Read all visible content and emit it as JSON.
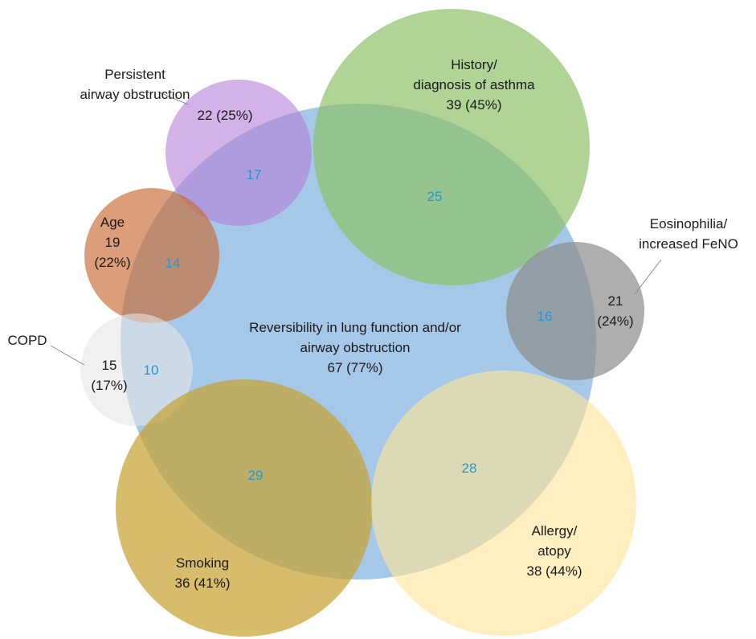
{
  "center": {
    "line1": "Reversibility in lung function and/or",
    "line2": "airway obstruction",
    "line3": "67 (77%)",
    "color": "#5b9bd5"
  },
  "circles": {
    "persistent": {
      "line1": "Persistent",
      "line2": "airway obstruction",
      "value": "22 (25%)",
      "overlap": "17",
      "color": "#b57fd9"
    },
    "history": {
      "line1": "History/",
      "line2": "diagnosis of asthma",
      "value": "39 (45%)",
      "overlap": "25",
      "color": "#8fc06a"
    },
    "age": {
      "line1": "Age",
      "line2": "19",
      "line3": "(22%)",
      "overlap": "14",
      "color": "#c96a33"
    },
    "eosinophilia": {
      "line1": "Eosinophilia/",
      "line2": "increased FeNO",
      "value1": "21",
      "value2": "(24%)",
      "overlap": "16",
      "color": "#8c8c8c"
    },
    "copd": {
      "line1": "COPD",
      "value1": "15",
      "value2": "(17%)",
      "overlap": "10",
      "color": "#e6e6e6"
    },
    "smoking": {
      "line1": "Smoking",
      "value": "36 (41%)",
      "overlap": "29",
      "color": "#c7a232"
    },
    "allergy": {
      "line1": "Allergy/",
      "line2": "atopy",
      "value": "38 (44%)",
      "overlap": "28",
      "color": "#fde49a"
    }
  },
  "colors": {
    "label": "#1a1a1a",
    "overlap_number": "#1a9bd7",
    "leader_line": "#8a8a8a"
  }
}
